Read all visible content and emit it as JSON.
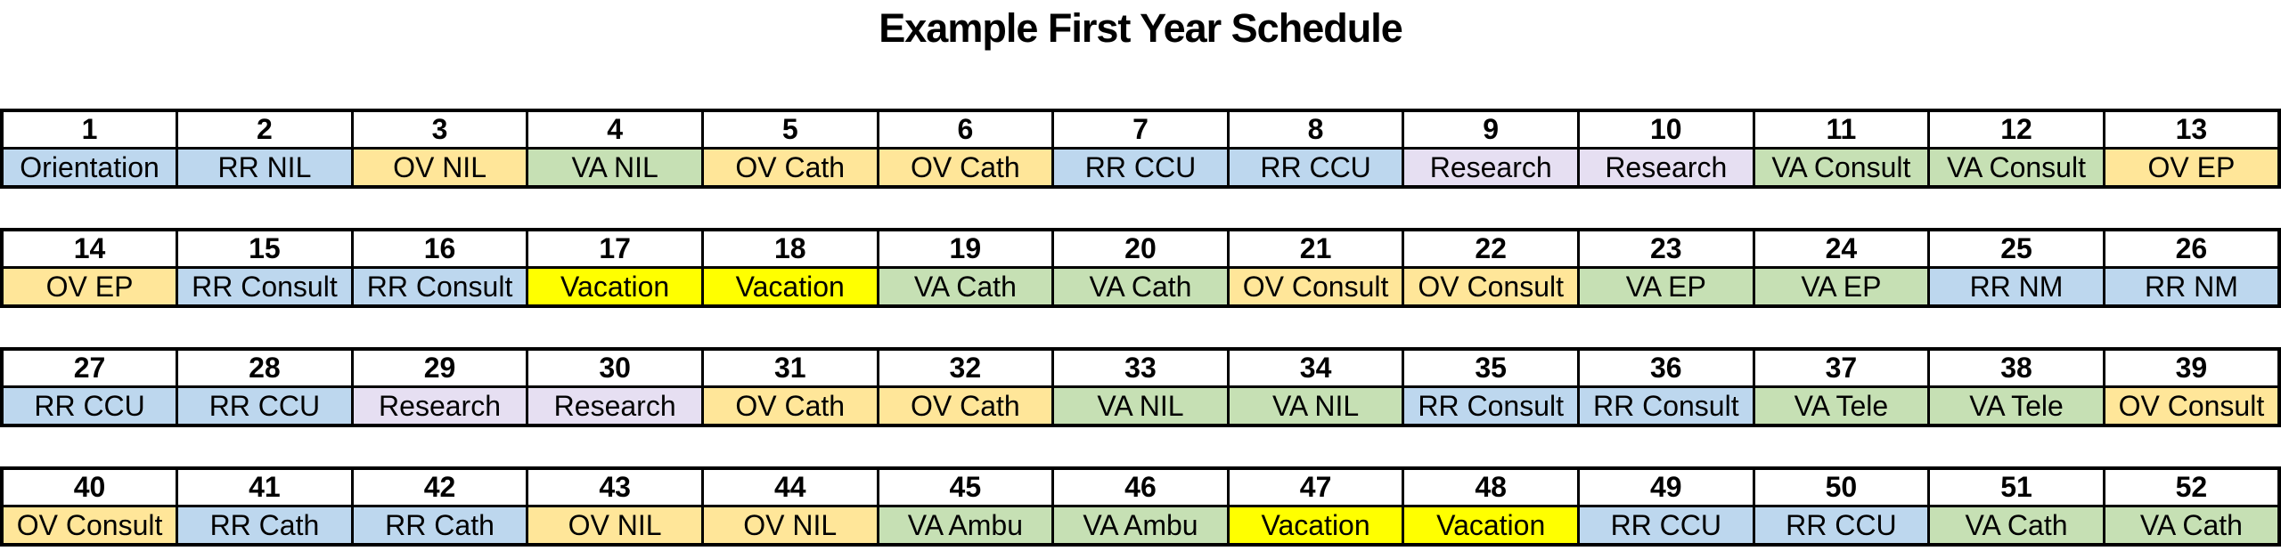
{
  "title": "Example First Year Schedule",
  "colors": {
    "blue": "#BDD7EE",
    "green": "#C6E0B4",
    "orange": "#FFE699",
    "lavender": "#E6DFF2",
    "yellow": "#FFFF00"
  },
  "rows": [
    {
      "weeks": [
        {
          "week": "1",
          "assignment": "Orientation",
          "color": "blue"
        },
        {
          "week": "2",
          "assignment": "RR NIL",
          "color": "blue"
        },
        {
          "week": "3",
          "assignment": "OV NIL",
          "color": "orange"
        },
        {
          "week": "4",
          "assignment": "VA NIL",
          "color": "green"
        },
        {
          "week": "5",
          "assignment": "OV Cath",
          "color": "orange"
        },
        {
          "week": "6",
          "assignment": "OV Cath",
          "color": "orange"
        },
        {
          "week": "7",
          "assignment": "RR CCU",
          "color": "blue"
        },
        {
          "week": "8",
          "assignment": "RR CCU",
          "color": "blue"
        },
        {
          "week": "9",
          "assignment": "Research",
          "color": "lavender"
        },
        {
          "week": "10",
          "assignment": "Research",
          "color": "lavender"
        },
        {
          "week": "11",
          "assignment": "VA Consult",
          "color": "green"
        },
        {
          "week": "12",
          "assignment": "VA Consult",
          "color": "green"
        },
        {
          "week": "13",
          "assignment": "OV EP",
          "color": "orange"
        }
      ]
    },
    {
      "weeks": [
        {
          "week": "14",
          "assignment": "OV EP",
          "color": "orange"
        },
        {
          "week": "15",
          "assignment": "RR Consult",
          "color": "blue"
        },
        {
          "week": "16",
          "assignment": "RR Consult",
          "color": "blue"
        },
        {
          "week": "17",
          "assignment": "Vacation",
          "color": "yellow"
        },
        {
          "week": "18",
          "assignment": "Vacation",
          "color": "yellow"
        },
        {
          "week": "19",
          "assignment": "VA Cath",
          "color": "green"
        },
        {
          "week": "20",
          "assignment": "VA Cath",
          "color": "green"
        },
        {
          "week": "21",
          "assignment": "OV Consult",
          "color": "orange"
        },
        {
          "week": "22",
          "assignment": "OV Consult",
          "color": "orange"
        },
        {
          "week": "23",
          "assignment": "VA EP",
          "color": "green"
        },
        {
          "week": "24",
          "assignment": "VA EP",
          "color": "green"
        },
        {
          "week": "25",
          "assignment": "RR NM",
          "color": "blue"
        },
        {
          "week": "26",
          "assignment": "RR NM",
          "color": "blue"
        }
      ]
    },
    {
      "weeks": [
        {
          "week": "27",
          "assignment": "RR CCU",
          "color": "blue"
        },
        {
          "week": "28",
          "assignment": "RR CCU",
          "color": "blue"
        },
        {
          "week": "29",
          "assignment": "Research",
          "color": "lavender"
        },
        {
          "week": "30",
          "assignment": "Research",
          "color": "lavender"
        },
        {
          "week": "31",
          "assignment": "OV Cath",
          "color": "orange"
        },
        {
          "week": "32",
          "assignment": "OV Cath",
          "color": "orange"
        },
        {
          "week": "33",
          "assignment": "VA NIL",
          "color": "green"
        },
        {
          "week": "34",
          "assignment": "VA NIL",
          "color": "green"
        },
        {
          "week": "35",
          "assignment": "RR Consult",
          "color": "blue"
        },
        {
          "week": "36",
          "assignment": "RR Consult",
          "color": "blue"
        },
        {
          "week": "37",
          "assignment": "VA Tele",
          "color": "green"
        },
        {
          "week": "38",
          "assignment": "VA Tele",
          "color": "green"
        },
        {
          "week": "39",
          "assignment": "OV Consult",
          "color": "orange"
        }
      ]
    },
    {
      "weeks": [
        {
          "week": "40",
          "assignment": "OV Consult",
          "color": "orange"
        },
        {
          "week": "41",
          "assignment": "RR Cath",
          "color": "blue"
        },
        {
          "week": "42",
          "assignment": "RR Cath",
          "color": "blue"
        },
        {
          "week": "43",
          "assignment": "OV NIL",
          "color": "orange"
        },
        {
          "week": "44",
          "assignment": "OV NIL",
          "color": "orange"
        },
        {
          "week": "45",
          "assignment": "VA Ambu",
          "color": "green"
        },
        {
          "week": "46",
          "assignment": "VA Ambu",
          "color": "green"
        },
        {
          "week": "47",
          "assignment": "Vacation",
          "color": "yellow"
        },
        {
          "week": "48",
          "assignment": "Vacation",
          "color": "yellow"
        },
        {
          "week": "49",
          "assignment": "RR CCU",
          "color": "blue"
        },
        {
          "week": "50",
          "assignment": "RR CCU",
          "color": "blue"
        },
        {
          "week": "51",
          "assignment": "VA Cath",
          "color": "green"
        },
        {
          "week": "52",
          "assignment": "VA Cath",
          "color": "green"
        }
      ]
    }
  ]
}
